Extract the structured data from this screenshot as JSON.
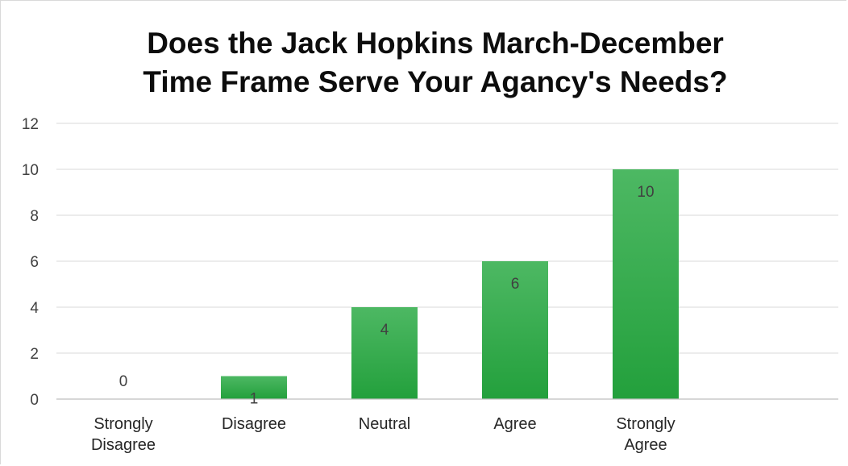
{
  "chart_data": {
    "type": "bar",
    "title_lines": [
      "Does the Jack Hopkins March-December",
      "Time Frame Serve Your Agancy's Needs?"
    ],
    "categories": [
      [
        "Strongly",
        "Disagree"
      ],
      [
        "Disagree"
      ],
      [
        "Neutral"
      ],
      [
        "Agree"
      ],
      [
        "Strongly",
        "Agree"
      ]
    ],
    "values": [
      0,
      1,
      4,
      6,
      10
    ],
    "data_labels": [
      "0",
      "1",
      "4",
      "6",
      "10"
    ],
    "ylim": [
      0,
      12
    ],
    "yticks": [
      0,
      2,
      4,
      6,
      8,
      10,
      12
    ],
    "grid": true,
    "legend": "none",
    "colors": {
      "bar_top": "#4db863",
      "bar_bottom": "#23a03c",
      "grid": "#d9d9d9",
      "axis": "#bfbfbf",
      "tick_text": "#404040",
      "label_text": "#404040",
      "title_text": "#0d0d0d"
    }
  }
}
